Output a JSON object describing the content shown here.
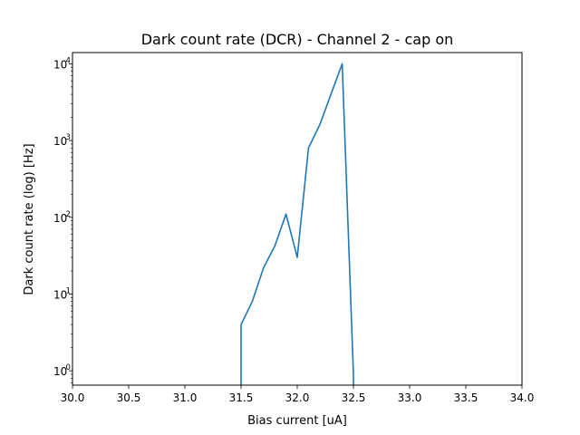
{
  "chart_data": {
    "type": "line",
    "title": "Dark count rate (DCR) - Channel 2 - cap on",
    "xlabel": "Bias current [uA]",
    "ylabel": "Dark count rate (log) [Hz]",
    "xlim": [
      30.0,
      34.0
    ],
    "ylim": [
      0.65,
      14000
    ],
    "yscale": "log",
    "grid": false,
    "x_ticks": [
      30.0,
      30.5,
      31.0,
      31.5,
      32.0,
      32.5,
      33.0,
      33.5,
      34.0
    ],
    "x_tick_labels": [
      "30.0",
      "30.5",
      "31.0",
      "31.5",
      "32.0",
      "32.5",
      "33.0",
      "33.5",
      "34.0"
    ],
    "y_ticks": [
      {
        "value": 1,
        "base": "10",
        "exp": "0"
      },
      {
        "value": 10,
        "base": "10",
        "exp": "1"
      },
      {
        "value": 100,
        "base": "10",
        "exp": "2"
      },
      {
        "value": 1000,
        "base": "10",
        "exp": "3"
      },
      {
        "value": 10000,
        "base": "10",
        "exp": "4"
      }
    ],
    "series": [
      {
        "color": "#1f77b4",
        "x": [
          31.5,
          31.5,
          31.6,
          31.7,
          31.8,
          31.9,
          32.0,
          32.1,
          32.2,
          32.3,
          32.4,
          32.5,
          32.5
        ],
        "y": [
          0.5,
          4,
          8,
          22,
          42,
          110,
          30,
          800,
          1600,
          4000,
          10000,
          0.9,
          0.5
        ]
      }
    ]
  }
}
